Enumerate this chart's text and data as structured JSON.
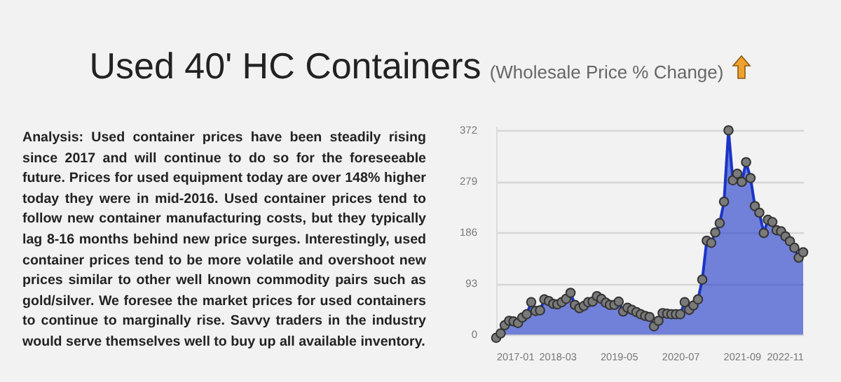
{
  "chart_data": {
    "type": "area",
    "title": "Used 40' HC Containers",
    "subtitle": "(Wholesale Price % Change)",
    "annotations": [
      "Analysis: Used container prices have been steadily rising since 2017 and will continue to do so for the foreseeable future. Prices for used equipment today are over 148% higher today they were in mid-2016. Used container prices tend to follow new container manufacturing costs, but they typically lag 8-16 months behind new price surges. Interestingly, used container prices tend to be more volatile and overshoot new prices similar to other well known commodity pairs such as gold/silver. We foresee the market prices for used containers to continue to marginally rise. Savvy traders in the industry would serve themselves well to buy up all available inventory."
    ],
    "x": [
      "2017-01",
      "2017-02",
      "2017-03",
      "2017-04",
      "2017-05",
      "2017-06",
      "2017-07",
      "2017-08",
      "2017-09",
      "2017-10",
      "2017-11",
      "2017-12",
      "2018-01",
      "2018-02",
      "2018-03",
      "2018-04",
      "2018-05",
      "2018-06",
      "2018-07",
      "2018-08",
      "2018-09",
      "2018-10",
      "2018-11",
      "2018-12",
      "2019-01",
      "2019-02",
      "2019-03",
      "2019-04",
      "2019-05",
      "2019-06",
      "2019-07",
      "2019-08",
      "2019-09",
      "2019-10",
      "2019-11",
      "2019-12",
      "2020-01",
      "2020-02",
      "2020-03",
      "2020-04",
      "2020-05",
      "2020-06",
      "2020-07",
      "2020-08",
      "2020-09",
      "2020-10",
      "2020-11",
      "2020-12",
      "2021-01",
      "2021-02",
      "2021-03",
      "2021-04",
      "2021-05",
      "2021-06",
      "2021-07",
      "2021-08",
      "2021-09",
      "2021-10",
      "2021-11",
      "2021-12",
      "2022-01",
      "2022-02",
      "2022-03",
      "2022-04",
      "2022-05",
      "2022-06",
      "2022-07",
      "2022-08",
      "2022-09",
      "2022-10",
      "2022-11"
    ],
    "series": [
      {
        "color": "#1a35c8",
        "values": [
          -6,
          2,
          17,
          25,
          24,
          21,
          31,
          37,
          59,
          43,
          44,
          64,
          61,
          56,
          55,
          59,
          65,
          76,
          54,
          48,
          52,
          59,
          60,
          70,
          65,
          58,
          54,
          54,
          60,
          42,
          49,
          45,
          41,
          37,
          34,
          32,
          15,
          25,
          39,
          38,
          37,
          37,
          37,
          59,
          45,
          53,
          64,
          100,
          171,
          167,
          186,
          203,
          242,
          372,
          281,
          293,
          278,
          314,
          285,
          234,
          222,
          185,
          209,
          205,
          190,
          188,
          179,
          170,
          158,
          140,
          150
        ]
      }
    ],
    "xlim": [
      "2017-01",
      "2022-11"
    ],
    "xticks": [
      "2017-01",
      "2018-03",
      "2019-05",
      "2020-07",
      "2021-09",
      "2022-11"
    ],
    "ylim": [
      -10,
      380
    ],
    "yticks": [
      0,
      93,
      186,
      279,
      372
    ],
    "grid": "y",
    "marker": "circle"
  }
}
